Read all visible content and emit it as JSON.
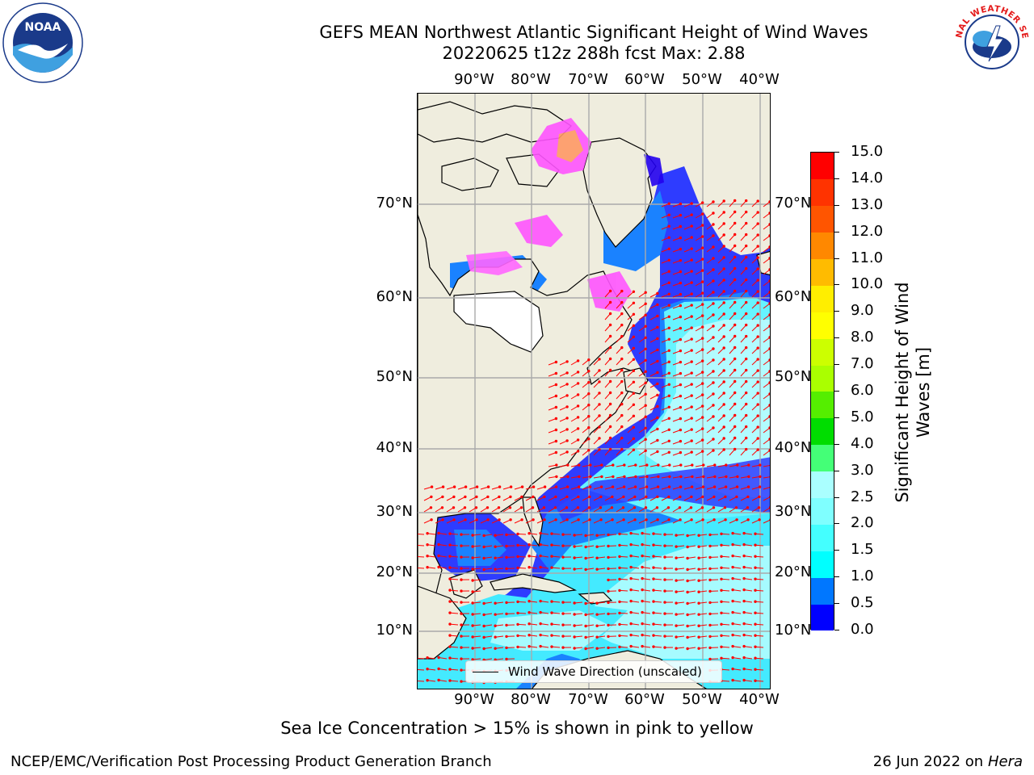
{
  "header": {
    "title_line1": "GEFS MEAN Northwest Atlantic Significant Height of Wind Waves",
    "title_line2": "20220625 t12z 288h fcst   Max: 2.88"
  },
  "logos": {
    "left": "NOAA",
    "right": "NATIONAL WEATHER SERVICE"
  },
  "map": {
    "lon_labels": [
      "90°W",
      "80°W",
      "70°W",
      "60°W",
      "50°W",
      "40°W"
    ],
    "lat_labels": [
      "70°N",
      "60°N",
      "50°N",
      "40°N",
      "30°N",
      "20°N",
      "10°N"
    ],
    "legend_label": "Wind Wave Direction (unscaled)",
    "arrow_color": "#ff0000",
    "land_color": "#efedde"
  },
  "colorbar": {
    "title": "Significant Height of Wind Waves [m]",
    "ticks": [
      "0.0",
      "0.5",
      "1.0",
      "1.5",
      "2.0",
      "2.5",
      "3.0",
      "4.0",
      "5.0",
      "6.0",
      "7.0",
      "8.0",
      "9.0",
      "10.0",
      "11.0",
      "12.0",
      "13.0",
      "14.0",
      "15.0"
    ],
    "colors": [
      "#0000ff",
      "#0077ff",
      "#00ffff",
      "#44ffff",
      "#7fffff",
      "#aaffff",
      "#44ff77",
      "#00dd00",
      "#55ee00",
      "#aaff00",
      "#ccff00",
      "#ffff00",
      "#ffee00",
      "#ffbb00",
      "#ff8800",
      "#ff5500",
      "#ff3300",
      "#ff0000"
    ]
  },
  "footnote": "Sea Ice Concentration > 15% is shown in pink to yellow",
  "credits": {
    "left": "NCEP/EMC/Verification Post Processing Product Generation Branch",
    "right_date": "26 Jun 2022 on",
    "right_host": "Hera"
  }
}
